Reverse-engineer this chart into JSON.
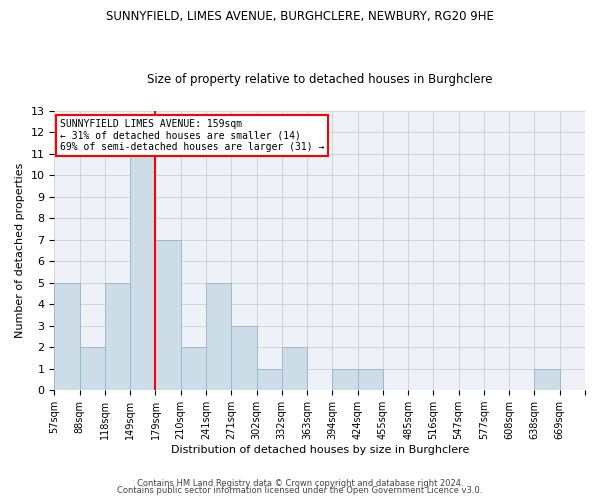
{
  "title": "SUNNYFIELD, LIMES AVENUE, BURGHCLERE, NEWBURY, RG20 9HE",
  "subtitle": "Size of property relative to detached houses in Burghclere",
  "xlabel": "Distribution of detached houses by size in Burghclere",
  "ylabel": "Number of detached properties",
  "categories": [
    "57sqm",
    "88sqm",
    "118sqm",
    "149sqm",
    "179sqm",
    "210sqm",
    "241sqm",
    "271sqm",
    "302sqm",
    "332sqm",
    "363sqm",
    "394sqm",
    "424sqm",
    "455sqm",
    "485sqm",
    "516sqm",
    "547sqm",
    "577sqm",
    "608sqm",
    "638sqm",
    "669sqm"
  ],
  "values": [
    5,
    2,
    5,
    11,
    7,
    2,
    5,
    3,
    1,
    2,
    0,
    1,
    1,
    0,
    0,
    0,
    0,
    0,
    0,
    1,
    0
  ],
  "bar_color": "#ccdde8",
  "bar_edge_color": "#a0b8cc",
  "vline_x_index": 3,
  "vline_color": "red",
  "annotation_text": "SUNNYFIELD LIMES AVENUE: 159sqm\n← 31% of detached houses are smaller (14)\n69% of semi-detached houses are larger (31) →",
  "annotation_box_color": "white",
  "annotation_box_edge": "red",
  "ylim": [
    0,
    13
  ],
  "yticks": [
    0,
    1,
    2,
    3,
    4,
    5,
    6,
    7,
    8,
    9,
    10,
    11,
    12,
    13
  ],
  "footer1": "Contains HM Land Registry data © Crown copyright and database right 2024.",
  "footer2": "Contains public sector information licensed under the Open Government Licence v3.0.",
  "grid_color": "#c8c8c8",
  "bg_color": "#eef2f8",
  "title_fontsize": 8.5,
  "subtitle_fontsize": 8.5,
  "xlabel_fontsize": 8,
  "ylabel_fontsize": 8,
  "tick_fontsize": 7,
  "footer_fontsize": 6
}
